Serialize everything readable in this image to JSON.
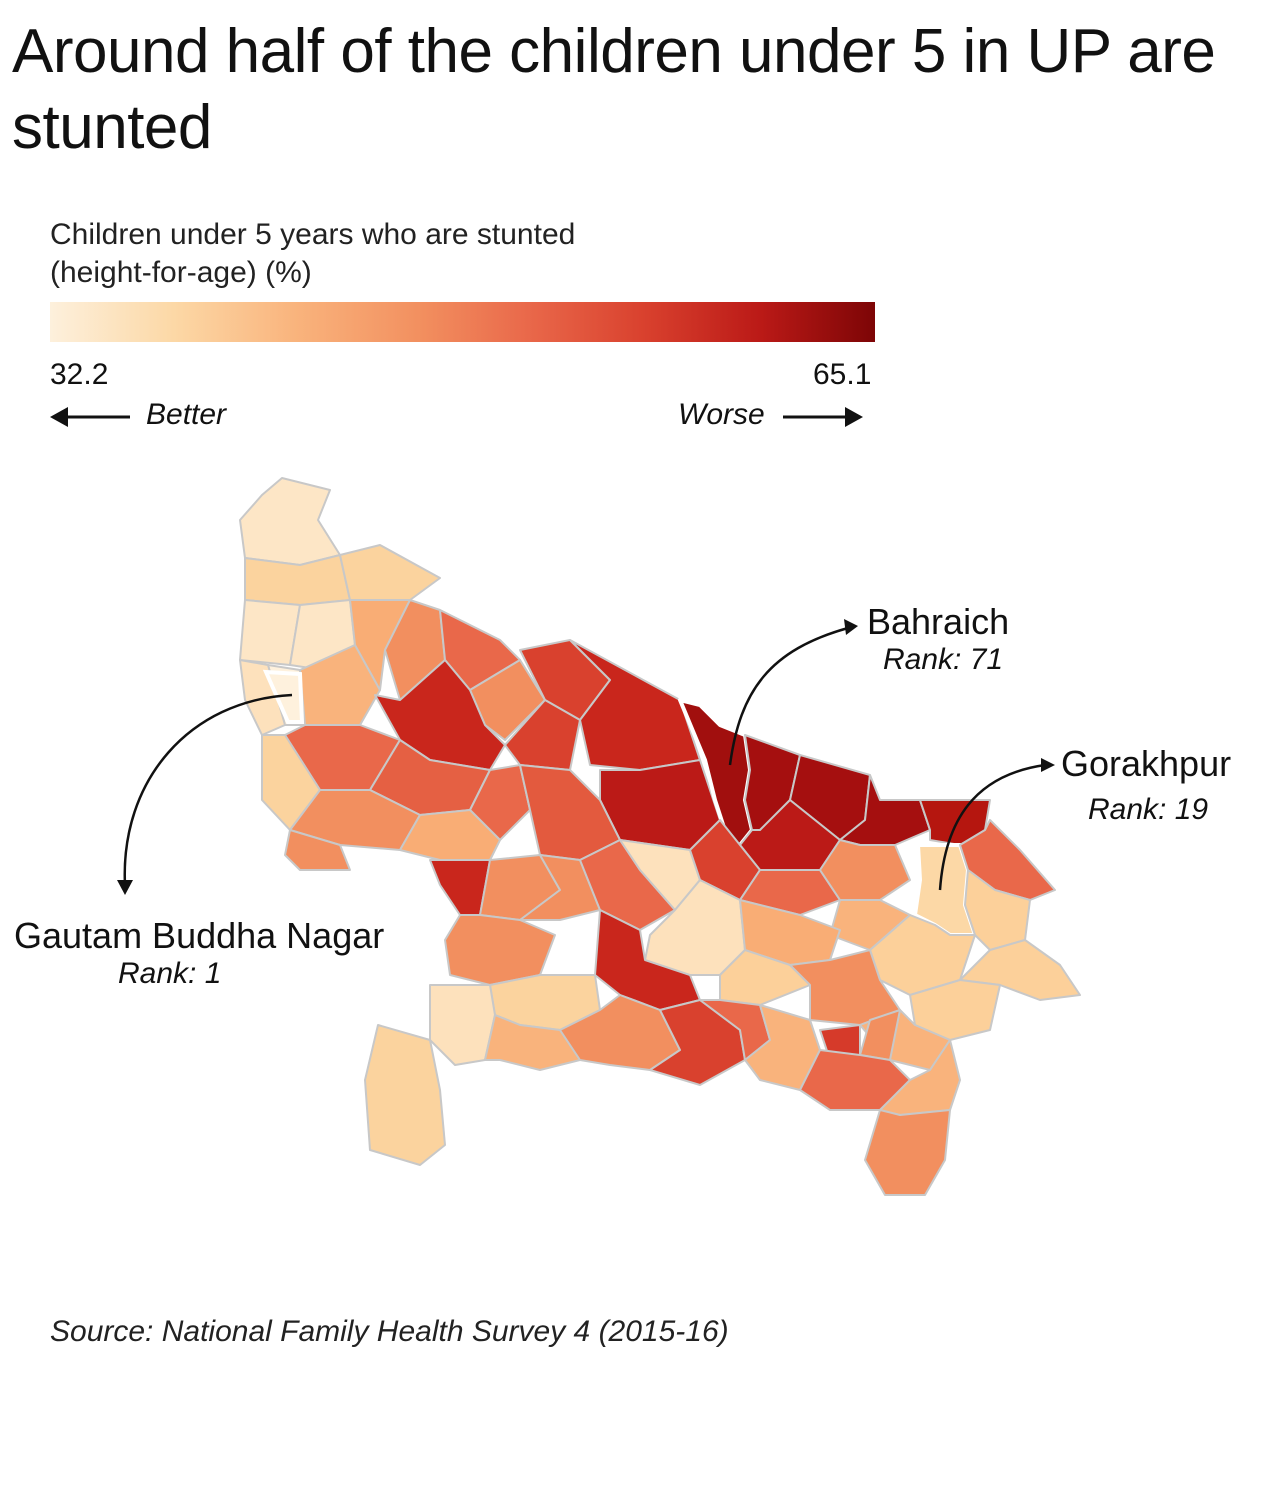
{
  "title": "Around half of the children under 5 in UP are stunted",
  "legend": {
    "title_line1": "Children under 5 years who are stunted",
    "title_line2": "(height-for-age) (%)",
    "min": "32.2",
    "max": "65.1",
    "better": "Better",
    "worse": "Worse",
    "colors": [
      "#fdf0dc",
      "#fcd8a6",
      "#f9b37c",
      "#f28f5f",
      "#e9684a",
      "#d9412e",
      "#bb1a17",
      "#7d0506"
    ]
  },
  "annotations": [
    {
      "name": "Bahraich",
      "rank": "Rank: 71"
    },
    {
      "name": "Gorakhpur",
      "rank": "Rank: 19"
    },
    {
      "name": "Gautam Buddha Nagar",
      "rank": "Rank: 1"
    }
  ],
  "map": {
    "region": "Uttar Pradesh districts",
    "highlight_outline_color": "#ffffff",
    "district_border_color": "#c8c8c8"
  },
  "source": "Source: National Family Health Survey 4 (2015-16)"
}
